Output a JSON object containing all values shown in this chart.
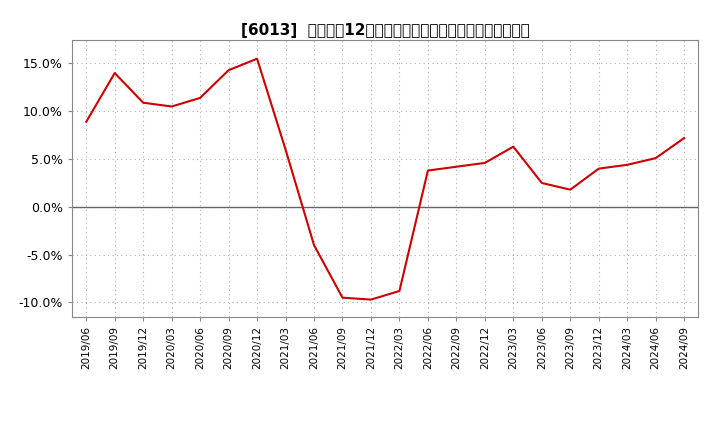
{
  "title": "[6013]  売上高の12か月移動合計の対前年同期増減率の推移",
  "line_color": "#cc0000",
  "background_color": "#ffffff",
  "plot_bg_color": "#ffffff",
  "grid_color": "#b0b0b0",
  "ylim": [
    -0.115,
    0.175
  ],
  "yticks": [
    -0.1,
    -0.05,
    0.0,
    0.05,
    0.1,
    0.15
  ],
  "dates": [
    "2019/06",
    "2019/09",
    "2019/12",
    "2020/03",
    "2020/06",
    "2020/09",
    "2020/12",
    "2021/03",
    "2021/06",
    "2021/09",
    "2021/12",
    "2022/03",
    "2022/06",
    "2022/09",
    "2022/12",
    "2023/03",
    "2023/06",
    "2023/09",
    "2023/12",
    "2024/03",
    "2024/06",
    "2024/09"
  ],
  "values": [
    0.089,
    0.14,
    0.109,
    0.105,
    0.114,
    0.143,
    0.155,
    0.06,
    -0.04,
    -0.095,
    -0.097,
    -0.088,
    0.038,
    0.042,
    0.046,
    0.063,
    0.025,
    0.018,
    0.04,
    0.044,
    0.051,
    0.072
  ]
}
